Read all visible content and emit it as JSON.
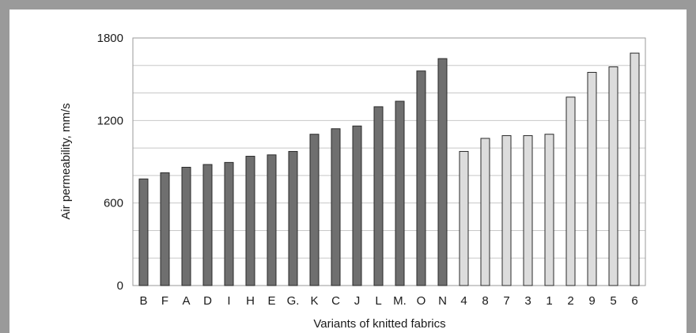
{
  "chart_data": {
    "type": "bar",
    "title": "",
    "xlabel": "Variants of knitted fabrics",
    "ylabel": "Air permeability, mm/s",
    "ylim": [
      0,
      1800
    ],
    "yticks": [
      0,
      600,
      1200,
      1800
    ],
    "grid": true,
    "categories": [
      "B",
      "F",
      "A",
      "D",
      "I",
      "H",
      "E",
      "G.",
      "K",
      "C",
      "J",
      "L",
      "M.",
      "O",
      "N",
      "4",
      "8",
      "7",
      "3",
      "1",
      "2",
      "9",
      "5",
      "6"
    ],
    "values": [
      775,
      820,
      860,
      880,
      895,
      940,
      950,
      975,
      1100,
      1140,
      1160,
      1300,
      1340,
      1560,
      1650,
      975,
      1070,
      1090,
      1090,
      1100,
      1370,
      1550,
      1590,
      1690
    ],
    "bar_groups": [
      {
        "from": 0,
        "to": 14,
        "color": "#6f6f6f"
      },
      {
        "from": 15,
        "to": 23,
        "color": "#dcdcdc"
      }
    ],
    "colors": {
      "plot_border": "#9a9a9a",
      "gridline": "#c8c8c8",
      "dark_bar": "#6f6f6f",
      "light_bar": "#dcdcdc"
    }
  }
}
